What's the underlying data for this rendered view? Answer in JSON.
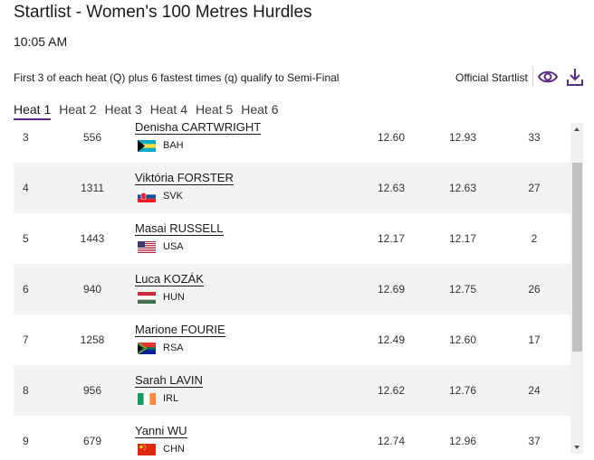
{
  "header": {
    "title": "Startlist - Women's 100 Metres Hurdles",
    "time": "10:05 AM",
    "qualification": "First 3 of each heat (Q) plus 6 fastest times (q) qualify to Semi-Final",
    "official_label": "Official Startlist",
    "eye_icon": "eye-icon",
    "download_icon": "download-icon"
  },
  "tabs": [
    {
      "label": "Heat 1",
      "active": true
    },
    {
      "label": "Heat 2",
      "active": false
    },
    {
      "label": "Heat 3",
      "active": false
    },
    {
      "label": "Heat 4",
      "active": false
    },
    {
      "label": "Heat 5",
      "active": false
    },
    {
      "label": "Heat 6",
      "active": false
    }
  ],
  "rows": [
    {
      "pos": "3",
      "bib": "556",
      "name": "Denisha CARTWRIGHT",
      "country": "BAH",
      "pb": "12.60",
      "sb": "12.93",
      "rank": "33"
    },
    {
      "pos": "4",
      "bib": "1311",
      "name": "Viktória FORSTER",
      "country": "SVK",
      "pb": "12.63",
      "sb": "12.63",
      "rank": "27"
    },
    {
      "pos": "5",
      "bib": "1443",
      "name": "Masai RUSSELL",
      "country": "USA",
      "pb": "12.17",
      "sb": "12.17",
      "rank": "2"
    },
    {
      "pos": "6",
      "bib": "940",
      "name": "Luca KOZÁK",
      "country": "HUN",
      "pb": "12.69",
      "sb": "12.75",
      "rank": "26"
    },
    {
      "pos": "7",
      "bib": "1258",
      "name": "Marione FOURIE",
      "country": "RSA",
      "pb": "12.49",
      "sb": "12.60",
      "rank": "17"
    },
    {
      "pos": "8",
      "bib": "956",
      "name": "Sarah LAVIN",
      "country": "IRL",
      "pb": "12.62",
      "sb": "12.76",
      "rank": "24"
    },
    {
      "pos": "9",
      "bib": "679",
      "name": "Yanni WU",
      "country": "CHN",
      "pb": "12.74",
      "sb": "12.96",
      "rank": "37"
    }
  ],
  "colors": {
    "accent": "#5b2a86",
    "row_shade": "#f3f3f3"
  }
}
